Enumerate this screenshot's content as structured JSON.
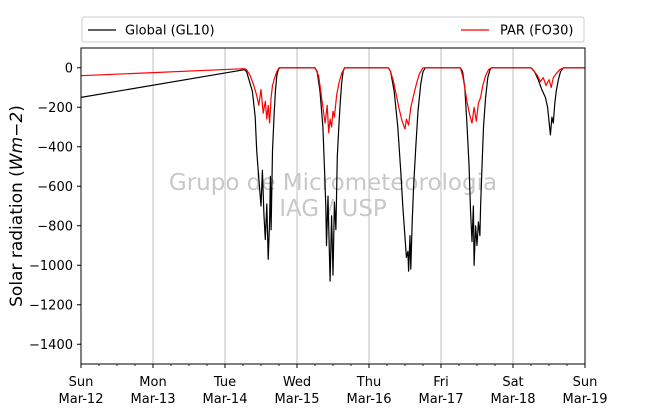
{
  "chart_data": {
    "type": "line",
    "ylabel": "Solar radiation",
    "ylabel_unit": "Wm−2",
    "ylim": [
      -1500,
      100
    ],
    "yticks": [
      0,
      -200,
      -400,
      -600,
      -800,
      -1000,
      -1200,
      -1400
    ],
    "xlim": [
      0,
      7
    ],
    "xticks": [
      {
        "day": "Sun",
        "date": "Mar-12",
        "x": 0
      },
      {
        "day": "Mon",
        "date": "Mar-13",
        "x": 1
      },
      {
        "day": "Tue",
        "date": "Mar-14",
        "x": 2
      },
      {
        "day": "Wed",
        "date": "Mar-15",
        "x": 3
      },
      {
        "day": "Thu",
        "date": "Mar-16",
        "x": 4
      },
      {
        "day": "Fri",
        "date": "Mar-17",
        "x": 5
      },
      {
        "day": "Sat",
        "date": "Mar-18",
        "x": 6
      },
      {
        "day": "Sun",
        "date": "Mar-19",
        "x": 7
      }
    ],
    "grid": "x-major",
    "legend_placement": "top-outside",
    "watermark": [
      "Grupo de Micrometeorologia",
      "IAG / USP"
    ],
    "series": [
      {
        "name": "Global (GL10)",
        "color": "#000000",
        "points": [
          [
            0,
            -150
          ],
          [
            2.27,
            -10
          ],
          [
            2.3,
            -20
          ],
          [
            2.38,
            -120
          ],
          [
            2.42,
            -250
          ],
          [
            2.44,
            -420
          ],
          [
            2.47,
            -560
          ],
          [
            2.5,
            -700
          ],
          [
            2.52,
            -520
          ],
          [
            2.54,
            -740
          ],
          [
            2.56,
            -870
          ],
          [
            2.58,
            -690
          ],
          [
            2.6,
            -970
          ],
          [
            2.62,
            -780
          ],
          [
            2.63,
            -550
          ],
          [
            2.64,
            -820
          ],
          [
            2.66,
            -420
          ],
          [
            2.68,
            -250
          ],
          [
            2.7,
            -120
          ],
          [
            2.72,
            -40
          ],
          [
            2.74,
            -10
          ],
          [
            2.76,
            0
          ],
          [
            3.25,
            0
          ],
          [
            3.28,
            -20
          ],
          [
            3.32,
            -120
          ],
          [
            3.36,
            -300
          ],
          [
            3.38,
            -500
          ],
          [
            3.4,
            -700
          ],
          [
            3.41,
            -900
          ],
          [
            3.43,
            -650
          ],
          [
            3.44,
            -800
          ],
          [
            3.46,
            -1080
          ],
          [
            3.48,
            -750
          ],
          [
            3.5,
            -1050
          ],
          [
            3.52,
            -680
          ],
          [
            3.54,
            -820
          ],
          [
            3.56,
            -450
          ],
          [
            3.58,
            -300
          ],
          [
            3.6,
            -180
          ],
          [
            3.62,
            -80
          ],
          [
            3.64,
            -20
          ],
          [
            3.66,
            0
          ],
          [
            4.27,
            0
          ],
          [
            4.3,
            -20
          ],
          [
            4.35,
            -120
          ],
          [
            4.4,
            -300
          ],
          [
            4.44,
            -520
          ],
          [
            4.47,
            -700
          ],
          [
            4.5,
            -860
          ],
          [
            4.52,
            -960
          ],
          [
            4.54,
            -930
          ],
          [
            4.55,
            -1030
          ],
          [
            4.57,
            -850
          ],
          [
            4.58,
            -1020
          ],
          [
            4.6,
            -780
          ],
          [
            4.62,
            -600
          ],
          [
            4.65,
            -400
          ],
          [
            4.68,
            -220
          ],
          [
            4.72,
            -80
          ],
          [
            4.75,
            -20
          ],
          [
            4.78,
            0
          ],
          [
            5.27,
            0
          ],
          [
            5.3,
            -20
          ],
          [
            5.33,
            -100
          ],
          [
            5.36,
            -280
          ],
          [
            5.39,
            -500
          ],
          [
            5.41,
            -720
          ],
          [
            5.43,
            -880
          ],
          [
            5.45,
            -700
          ],
          [
            5.46,
            -1000
          ],
          [
            5.48,
            -800
          ],
          [
            5.5,
            -900
          ],
          [
            5.52,
            -780
          ],
          [
            5.54,
            -850
          ],
          [
            5.55,
            -700
          ],
          [
            5.57,
            -500
          ],
          [
            5.59,
            -300
          ],
          [
            5.62,
            -150
          ],
          [
            5.65,
            -50
          ],
          [
            5.68,
            -10
          ],
          [
            5.7,
            0
          ],
          [
            6.25,
            0
          ],
          [
            6.3,
            -20
          ],
          [
            6.35,
            -60
          ],
          [
            6.4,
            -110
          ],
          [
            6.45,
            -150
          ],
          [
            6.48,
            -200
          ],
          [
            6.5,
            -270
          ],
          [
            6.52,
            -340
          ],
          [
            6.54,
            -250
          ],
          [
            6.56,
            -280
          ],
          [
            6.58,
            -180
          ],
          [
            6.6,
            -120
          ],
          [
            6.63,
            -60
          ],
          [
            6.66,
            -20
          ],
          [
            6.7,
            0
          ],
          [
            7,
            0
          ]
        ]
      },
      {
        "name": "PAR (FO30)",
        "color": "#ff0000",
        "points": [
          [
            0,
            -40
          ],
          [
            2.27,
            -5
          ],
          [
            2.3,
            -10
          ],
          [
            2.35,
            -40
          ],
          [
            2.4,
            -90
          ],
          [
            2.44,
            -140
          ],
          [
            2.47,
            -190
          ],
          [
            2.5,
            -110
          ],
          [
            2.53,
            -230
          ],
          [
            2.56,
            -170
          ],
          [
            2.58,
            -260
          ],
          [
            2.6,
            -190
          ],
          [
            2.62,
            -280
          ],
          [
            2.64,
            -150
          ],
          [
            2.66,
            -90
          ],
          [
            2.69,
            -50
          ],
          [
            2.72,
            -20
          ],
          [
            2.75,
            0
          ],
          [
            3.25,
            0
          ],
          [
            3.3,
            -40
          ],
          [
            3.33,
            -120
          ],
          [
            3.36,
            -200
          ],
          [
            3.39,
            -280
          ],
          [
            3.42,
            -190
          ],
          [
            3.44,
            -330
          ],
          [
            3.46,
            -260
          ],
          [
            3.48,
            -300
          ],
          [
            3.5,
            -220
          ],
          [
            3.52,
            -250
          ],
          [
            3.55,
            -140
          ],
          [
            3.58,
            -80
          ],
          [
            3.62,
            -30
          ],
          [
            3.66,
            0
          ],
          [
            4.27,
            0
          ],
          [
            4.3,
            -20
          ],
          [
            4.34,
            -70
          ],
          [
            4.38,
            -140
          ],
          [
            4.42,
            -210
          ],
          [
            4.46,
            -270
          ],
          [
            4.5,
            -310
          ],
          [
            4.52,
            -260
          ],
          [
            4.55,
            -290
          ],
          [
            4.58,
            -200
          ],
          [
            4.62,
            -140
          ],
          [
            4.66,
            -80
          ],
          [
            4.7,
            -30
          ],
          [
            4.75,
            0
          ],
          [
            5.27,
            0
          ],
          [
            5.3,
            -40
          ],
          [
            5.33,
            -100
          ],
          [
            5.36,
            -170
          ],
          [
            5.4,
            -240
          ],
          [
            5.43,
            -280
          ],
          [
            5.46,
            -200
          ],
          [
            5.49,
            -270
          ],
          [
            5.52,
            -180
          ],
          [
            5.55,
            -150
          ],
          [
            5.58,
            -90
          ],
          [
            5.62,
            -40
          ],
          [
            5.66,
            -10
          ],
          [
            5.7,
            0
          ],
          [
            6.25,
            0
          ],
          [
            6.3,
            -20
          ],
          [
            6.34,
            -40
          ],
          [
            6.38,
            -70
          ],
          [
            6.42,
            -50
          ],
          [
            6.46,
            -90
          ],
          [
            6.5,
            -60
          ],
          [
            6.53,
            -100
          ],
          [
            6.56,
            -50
          ],
          [
            6.6,
            -30
          ],
          [
            6.65,
            -10
          ],
          [
            6.7,
            0
          ],
          [
            7,
            0
          ]
        ]
      }
    ]
  }
}
